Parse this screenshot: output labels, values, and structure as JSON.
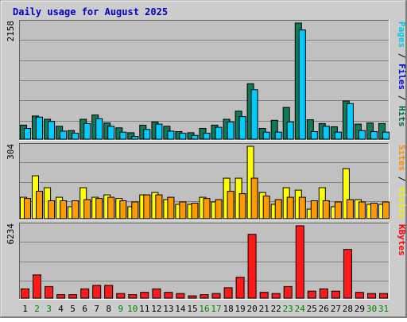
{
  "chart_data": {
    "type": "bar",
    "title": "Daily usage for August 2025",
    "categories": [
      "1",
      "2",
      "3",
      "4",
      "5",
      "6",
      "7",
      "8",
      "9",
      "10",
      "11",
      "12",
      "13",
      "14",
      "15",
      "16",
      "17",
      "18",
      "19",
      "20",
      "21",
      "22",
      "23",
      "24",
      "25",
      "26",
      "27",
      "28",
      "29",
      "30",
      "31"
    ],
    "weekend_days": [
      "2",
      "3",
      "9",
      "10",
      "16",
      "17",
      "23",
      "24",
      "30",
      "31"
    ],
    "panels": [
      {
        "id": "hits",
        "ymax_label": "2158",
        "ylim": [
          0,
          2158
        ],
        "legend": [
          {
            "text": "Pages",
            "color": "#00c8e8"
          },
          {
            "text": " / ",
            "color": "#000000"
          },
          {
            "text": "Files",
            "color": "#0000e0"
          },
          {
            "text": " / ",
            "color": "#000000"
          },
          {
            "text": "Hits",
            "color": "#006a48"
          }
        ],
        "series": [
          {
            "name": "Hits",
            "color": "#107a58",
            "values": [
              260,
              430,
              370,
              240,
              160,
              370,
              450,
              300,
              210,
              120,
              260,
              320,
              240,
              140,
              120,
              200,
              260,
              370,
              520,
              1030,
              200,
              350,
              590,
              2158,
              360,
              290,
              230,
              710,
              280,
              300,
              290
            ]
          },
          {
            "name": "Files",
            "color": "#00ccff",
            "values": [
              200,
              410,
              330,
              150,
              110,
              290,
              380,
              240,
              130,
              50,
              180,
              280,
              150,
              110,
              70,
              110,
              220,
              320,
              420,
              920,
              130,
              130,
              320,
              2030,
              140,
              240,
              130,
              660,
              160,
              140,
              130
            ]
          }
        ]
      },
      {
        "id": "visits",
        "ymax_label": "304",
        "ylim": [
          0,
          304
        ],
        "legend": [
          {
            "text": "Sites",
            "color": "#ff8c00"
          },
          {
            "text": " / ",
            "color": "#000000"
          },
          {
            "text": "Visits",
            "color": "#f0f000"
          }
        ],
        "series": [
          {
            "name": "Visits",
            "color": "#ffff00",
            "values": [
              90,
              180,
              130,
              90,
              50,
              130,
              90,
              100,
              85,
              50,
              100,
              110,
              80,
              60,
              60,
              90,
              70,
              170,
              170,
              304,
              110,
              60,
              130,
              120,
              40,
              130,
              50,
              210,
              80,
              60,
              60
            ]
          },
          {
            "name": "Sites",
            "color": "#ff9900",
            "values": [
              85,
              115,
              75,
              75,
              75,
              80,
              85,
              90,
              75,
              70,
              100,
              100,
              90,
              70,
              65,
              85,
              80,
              115,
              105,
              170,
              95,
              80,
              90,
              90,
              75,
              75,
              70,
              80,
              70,
              65,
              70
            ]
          }
        ]
      },
      {
        "id": "kbytes",
        "ymax_label": "6234",
        "ylim": [
          0,
          6234
        ],
        "legend": [
          {
            "text": "KBytes",
            "color": "#ff0000"
          }
        ],
        "series": [
          {
            "name": "KBytes",
            "color": "#ff1a1a",
            "values": [
              800,
              2000,
              1000,
              300,
              300,
              800,
              1100,
              1100,
              400,
              300,
              500,
              800,
              500,
              400,
              200,
              300,
              400,
              900,
              1800,
              5500,
              500,
              400,
              1000,
              6234,
              600,
              800,
              600,
              4200,
              500,
              400,
              400
            ]
          }
        ]
      }
    ]
  }
}
